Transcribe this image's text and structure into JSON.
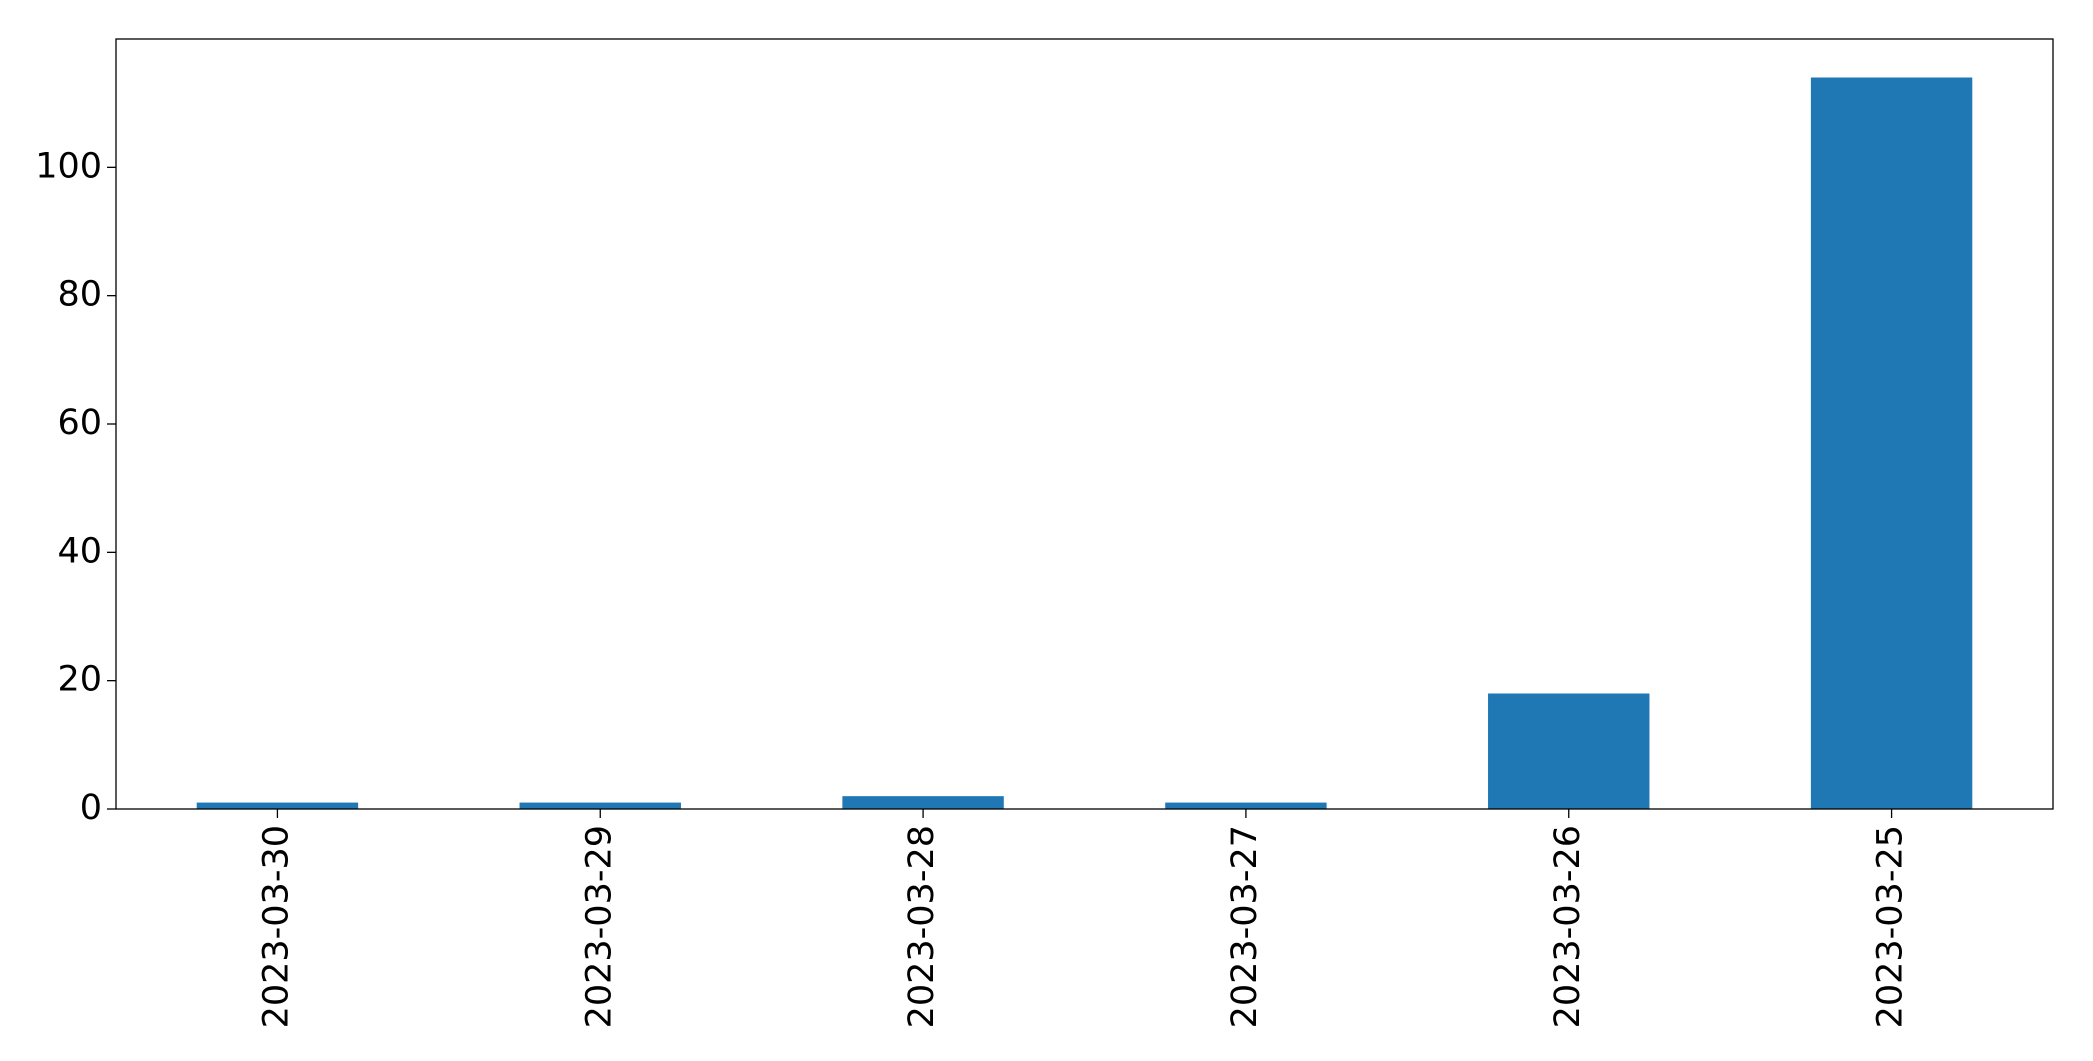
{
  "chart_data": {
    "type": "bar",
    "categories": [
      "2023-03-30",
      "2023-03-29",
      "2023-03-28",
      "2023-03-27",
      "2023-03-26",
      "2023-03-25"
    ],
    "values": [
      1,
      1,
      2,
      1,
      18,
      114
    ],
    "color": "#1f77b4",
    "ylim": [
      0,
      120
    ],
    "yticks": [
      0,
      20,
      40,
      60,
      80,
      100
    ],
    "grid": false
  }
}
